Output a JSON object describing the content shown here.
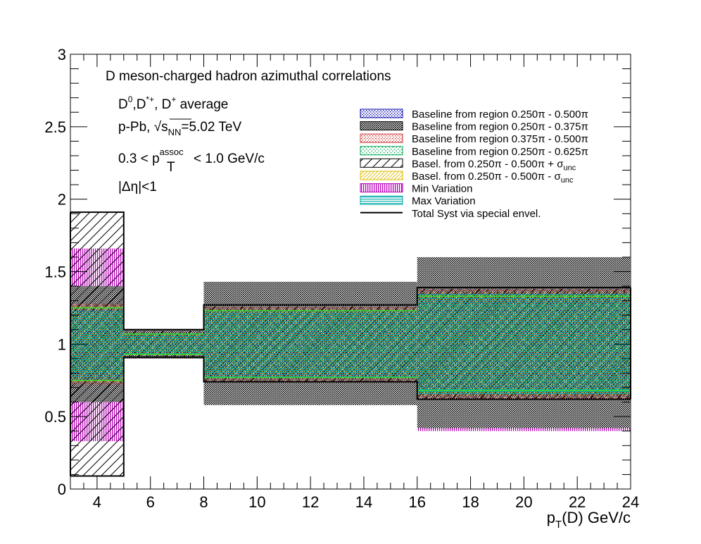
{
  "chart_data": {
    "type": "area",
    "title": "D meson-charged hadron azimuthal correlations",
    "xlabel": {
      "main": "p",
      "sub": "T",
      "rest": "(D) GeV/c"
    },
    "ylabel": "",
    "xlim": [
      3,
      24
    ],
    "ylim": [
      0,
      3
    ],
    "x_ticks": [
      4,
      6,
      8,
      10,
      12,
      14,
      16,
      18,
      20,
      22,
      24
    ],
    "y_ticks": [
      0,
      0.5,
      1,
      1.5,
      2,
      2.5,
      3
    ],
    "y_tick_labels": [
      "0",
      "0.5",
      "1",
      "1.5",
      "2",
      "2.5",
      "3"
    ],
    "grid": false,
    "legend_position": "top-right",
    "bins": [
      [
        3,
        5
      ],
      [
        5,
        8
      ],
      [
        8,
        16
      ],
      [
        16,
        24
      ]
    ],
    "annotations": {
      "line1_a": "D",
      "line1_b": "0",
      "line1_c": ",D",
      "line1_d": "*+",
      "line1_e": ", D",
      "line1_f": "+",
      "line1_g": " average",
      "line2_a": "p-Pb, ",
      "line2_sqrt": "√",
      "line2_s": "s",
      "line2_nn": "NN",
      "line2_val": "=5.02 TeV",
      "line3_a": "0.3 < p",
      "line3_sup": "assoc",
      "line3_sub": "T",
      "line3_b": " < 1.0 GeV/c",
      "line4": "|Δη|<1"
    },
    "series": [
      {
        "name": "Baseline from region 0.250π - 0.500π",
        "color": "#0000aa",
        "pattern": "dots-blue",
        "lower": [
          0.75,
          0.92,
          0.76,
          0.64
        ],
        "upper": [
          1.25,
          1.08,
          1.24,
          1.36
        ]
      },
      {
        "name": "Baseline from region 0.250π - 0.375π",
        "color": "#000000",
        "pattern": "crosshatch-black",
        "lower": [
          0.6,
          0.9,
          0.58,
          0.42
        ],
        "upper": [
          1.4,
          1.1,
          1.43,
          1.6
        ]
      },
      {
        "name": "Baseline from region 0.375π - 0.500π",
        "color": "#cc3333",
        "pattern": "dots-red",
        "lower": [
          0.72,
          0.93,
          0.74,
          0.62
        ],
        "upper": [
          1.28,
          1.07,
          1.26,
          1.38
        ]
      },
      {
        "name": "Baseline from region 0.250π - 0.625π",
        "color": "#00aa55",
        "pattern": "dots-green",
        "lower": [
          0.78,
          0.94,
          0.78,
          0.66
        ],
        "upper": [
          1.22,
          1.06,
          1.22,
          1.34
        ]
      },
      {
        "name_a": "Basel. from 0.250π - 0.500π + σ",
        "name_sub": "unc",
        "color": "#000000",
        "pattern": "diag-black",
        "lower": [
          0.09,
          0.91,
          0.74,
          0.62
        ],
        "upper": [
          1.91,
          1.09,
          1.26,
          1.38
        ]
      },
      {
        "name_a": "Basel. from 0.250π - 0.500π - σ",
        "name_sub": "unc",
        "color": "#ddbb00",
        "pattern": "diag-yellow",
        "lower": [
          0.74,
          0.92,
          0.76,
          0.64
        ],
        "upper": [
          1.26,
          1.08,
          1.24,
          1.36
        ]
      },
      {
        "name": "Min Variation",
        "color": "#bb00bb",
        "pattern": "vert-magenta",
        "lower": [
          0.33,
          0.9,
          0.58,
          0.4
        ],
        "upper": [
          1.66,
          1.1,
          1.42,
          1.6
        ]
      },
      {
        "name": "Max Variation",
        "color": "#00aaaa",
        "pattern": "horiz-cyan",
        "lower": [
          0.76,
          0.93,
          0.77,
          0.65
        ],
        "upper": [
          1.24,
          1.07,
          1.23,
          1.35
        ]
      },
      {
        "name": "Total Syst via special envel.",
        "color": "#000000",
        "pattern": "line",
        "lower": [
          0.09,
          0.91,
          0.74,
          0.62
        ],
        "upper": [
          1.91,
          1.1,
          1.27,
          1.39
        ]
      }
    ],
    "green_lines": {
      "color": "#33dd33",
      "lower": [
        0.75,
        0.93,
        0.77,
        0.68
      ],
      "upper": [
        1.25,
        1.07,
        1.23,
        1.33
      ]
    }
  }
}
